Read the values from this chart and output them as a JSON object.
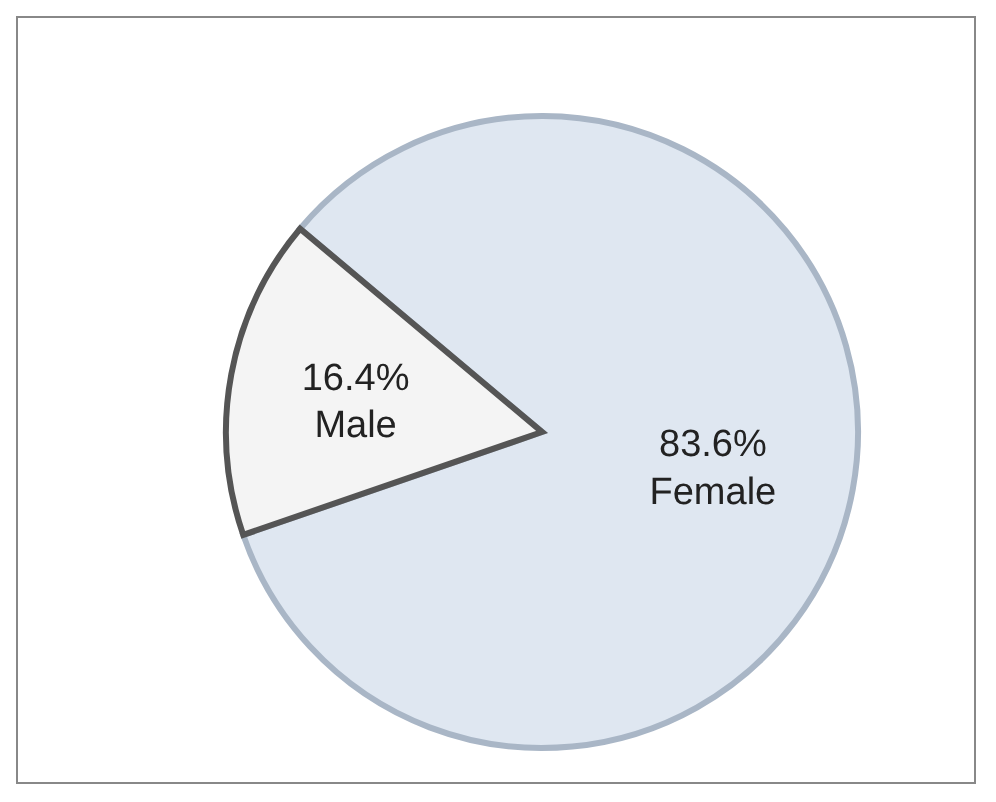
{
  "chart_data": {
    "type": "pie",
    "categories": [
      "Female",
      "Male"
    ],
    "values": [
      83.6,
      16.4
    ],
    "value_labels": [
      "83.6%",
      "16.4%"
    ],
    "colors": [
      "#dfe7f1",
      "#f4f4f4"
    ]
  }
}
